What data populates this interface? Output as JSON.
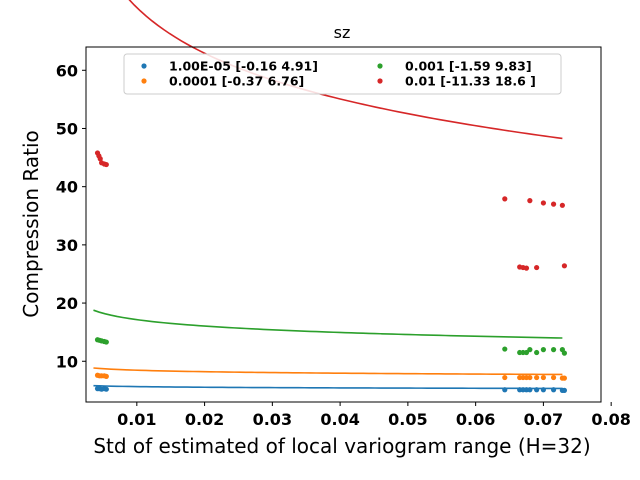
{
  "chart_data": {
    "type": "scatter",
    "title": "sz",
    "xlabel": "Std of estimated of local variogram range (H=32)",
    "ylabel": "Compression Ratio",
    "xlim": [
      0.0025,
      0.0785
    ],
    "ylim": [
      3,
      64
    ],
    "xticks": [
      0.01,
      0.02,
      0.03,
      0.04,
      0.05,
      0.06,
      0.07,
      0.08
    ],
    "xtick_labels": [
      "0.01",
      "0.02",
      "0.03",
      "0.04",
      "0.05",
      "0.06",
      "0.07",
      "0.08"
    ],
    "yticks": [
      10,
      20,
      30,
      40,
      50,
      60
    ],
    "ytick_labels": [
      "10",
      "20",
      "30",
      "40",
      "50",
      "60"
    ],
    "grid": false,
    "legend_position": "top",
    "series": [
      {
        "name": "1.00E-05 [-0.16  4.91]",
        "color": "#1f77b4",
        "points": [
          [
            0.0042,
            5.3
          ],
          [
            0.0045,
            5.3
          ],
          [
            0.0048,
            5.2
          ],
          [
            0.0052,
            5.3
          ],
          [
            0.0055,
            5.2
          ],
          [
            0.0643,
            5.1
          ],
          [
            0.0665,
            5.1
          ],
          [
            0.067,
            5.1
          ],
          [
            0.0675,
            5.1
          ],
          [
            0.068,
            5.1
          ],
          [
            0.069,
            5.1
          ],
          [
            0.07,
            5.1
          ],
          [
            0.0715,
            5.1
          ],
          [
            0.0728,
            5.0
          ],
          [
            0.0731,
            5.0
          ]
        ],
        "fit": {
          "a": 4.91,
          "b": -0.16
        }
      },
      {
        "name": "0.0001 [-0.37  6.76]",
        "color": "#ff7f0e",
        "points": [
          [
            0.0042,
            7.6
          ],
          [
            0.0045,
            7.5
          ],
          [
            0.0048,
            7.5
          ],
          [
            0.0052,
            7.5
          ],
          [
            0.0055,
            7.4
          ],
          [
            0.0643,
            7.2
          ],
          [
            0.0665,
            7.2
          ],
          [
            0.067,
            7.2
          ],
          [
            0.0675,
            7.2
          ],
          [
            0.068,
            7.2
          ],
          [
            0.069,
            7.2
          ],
          [
            0.07,
            7.2
          ],
          [
            0.0715,
            7.2
          ],
          [
            0.0728,
            7.1
          ],
          [
            0.0731,
            7.1
          ]
        ],
        "fit": {
          "a": 6.76,
          "b": -0.37
        }
      },
      {
        "name": "0.001 [-1.59  9.83]",
        "color": "#2ca02c",
        "points": [
          [
            0.0042,
            13.7
          ],
          [
            0.0045,
            13.6
          ],
          [
            0.0048,
            13.5
          ],
          [
            0.0052,
            13.4
          ],
          [
            0.0055,
            13.3
          ],
          [
            0.0643,
            12.1
          ],
          [
            0.0665,
            11.5
          ],
          [
            0.067,
            11.5
          ],
          [
            0.0675,
            11.5
          ],
          [
            0.068,
            12.0
          ],
          [
            0.069,
            11.5
          ],
          [
            0.07,
            12.0
          ],
          [
            0.0715,
            12.0
          ],
          [
            0.0728,
            12.0
          ],
          [
            0.0731,
            11.4
          ]
        ],
        "fit": {
          "a": 9.83,
          "b": -1.59
        }
      },
      {
        "name": "0.01 [-11.33  18.6 ]",
        "color": "#d62728",
        "points": [
          [
            0.0042,
            45.8
          ],
          [
            0.0044,
            45.3
          ],
          [
            0.0046,
            44.8
          ],
          [
            0.0048,
            44.1
          ],
          [
            0.0052,
            43.9
          ],
          [
            0.0055,
            43.8
          ],
          [
            0.0643,
            37.9
          ],
          [
            0.0665,
            26.2
          ],
          [
            0.067,
            26.1
          ],
          [
            0.0675,
            26.0
          ],
          [
            0.068,
            37.6
          ],
          [
            0.069,
            26.1
          ],
          [
            0.07,
            37.2
          ],
          [
            0.0715,
            37.0
          ],
          [
            0.0728,
            36.8
          ],
          [
            0.0731,
            26.4
          ]
        ],
        "fit": {
          "a": 18.6,
          "b": -11.33
        }
      }
    ],
    "fit_range": [
      0.0036,
      0.0728
    ]
  }
}
